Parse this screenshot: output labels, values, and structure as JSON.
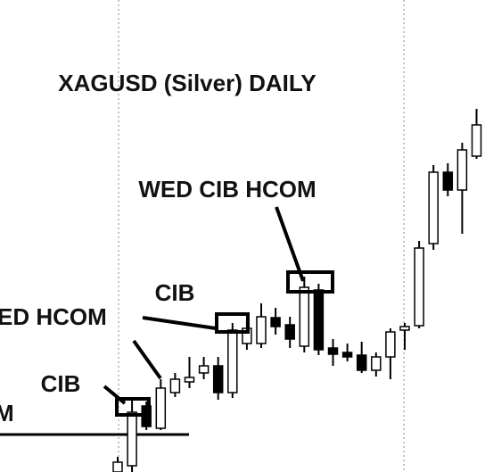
{
  "chart_data": {
    "type": "candlestick",
    "title": "XAGUSD (Silver) DAILY",
    "annotations": [
      "WED CIB HCOM",
      "CIB",
      "ED HCOM",
      "CIB",
      "M"
    ],
    "open": [
      0,
      7,
      74,
      49,
      89,
      101,
      111,
      119,
      89,
      144,
      144,
      173,
      165,
      141,
      204,
      139,
      134,
      131,
      114,
      129,
      159,
      164,
      256,
      336,
      316,
      354,
      414
    ],
    "high": [
      17,
      81,
      79,
      104,
      111,
      129,
      129,
      129,
      167,
      169,
      189,
      184,
      174,
      219,
      211,
      149,
      144,
      146,
      134,
      161,
      167,
      259,
      344,
      346,
      369,
      407,
      420
    ],
    "low": [
      0,
      0,
      47,
      47,
      84,
      94,
      104,
      81,
      83,
      137,
      139,
      154,
      139,
      134,
      131,
      119,
      124,
      111,
      107,
      104,
      137,
      161,
      249,
      309,
      267,
      351,
      387
    ],
    "close": [
      11,
      67,
      51,
      94,
      104,
      106,
      119,
      89,
      159,
      161,
      174,
      163,
      149,
      207,
      137,
      132,
      129,
      114,
      129,
      157,
      163,
      251,
      336,
      316,
      361,
      389,
      389
    ],
    "ylim": [
      0,
      529
    ],
    "up_color": "#ffffff",
    "down_color": "#000000"
  }
}
